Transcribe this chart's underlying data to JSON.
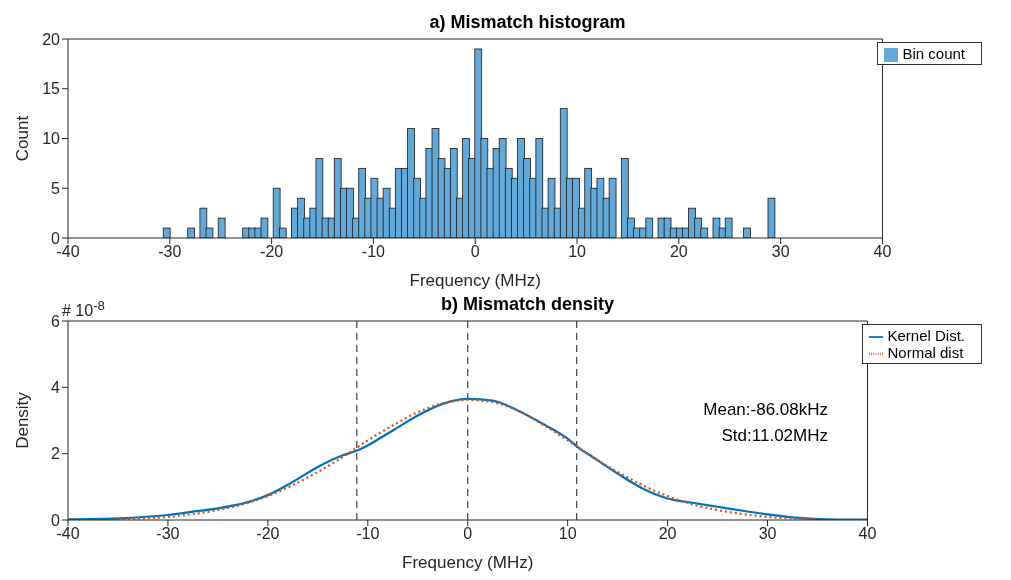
{
  "chart_data": [
    {
      "type": "histogram",
      "title": "a) Mismatch histogram",
      "xlabel": "Frequency (MHz)",
      "ylabel": "Count",
      "legend": "top right",
      "bins": [
        -30.6,
        -30,
        -29.4,
        -28.8,
        -28.2,
        -27.6,
        -27,
        -26.4,
        -25.8,
        -25.2,
        -24.6,
        -24,
        -23.4,
        -22.8,
        -22.2,
        -21.6,
        -21,
        -20.4,
        -19.8,
        -19.2,
        -18.6,
        -18,
        -17.4,
        -16.8,
        -16.2,
        -15.6,
        -15,
        -14.4,
        -13.8,
        -13.2,
        -12.6,
        -12,
        -11.4,
        -10.8,
        -10.2,
        -9.6,
        -9,
        -8.4,
        -7.8,
        -7.2,
        -6.6,
        -6,
        -5.4,
        -4.8,
        -4.2,
        -3.6,
        -3,
        -2.4,
        -1.8,
        -1.2,
        -0.6,
        0,
        0.6,
        1.2,
        1.8,
        2.4,
        3,
        3.6,
        4.2,
        4.8,
        5.4,
        6,
        6.6,
        7.2,
        7.8,
        8.4,
        9,
        9.6,
        10.2,
        10.8,
        11.4,
        12,
        12.6,
        13.2,
        13.8,
        14.4,
        15,
        15.6,
        16.2,
        16.8,
        17.4,
        18,
        18.6,
        19.2,
        19.8,
        20.4,
        21,
        21.6,
        22.2,
        22.8,
        23.4,
        24,
        24.6,
        25.2,
        25.8,
        26.4,
        27,
        27.6,
        28.2,
        28.8,
        29.4
      ],
      "series": [
        {
          "name": "Bin count",
          "color": "#62a8d8",
          "values": [
            1,
            0,
            0,
            0,
            1,
            0,
            3,
            1,
            0,
            2,
            0,
            0,
            0,
            1,
            1,
            1,
            2,
            0,
            5,
            1,
            0,
            3,
            4,
            2,
            3,
            8,
            2,
            2,
            8,
            5,
            5,
            2,
            7,
            4,
            6,
            4,
            5,
            3,
            7,
            7,
            11,
            6,
            4,
            9,
            11,
            8,
            7,
            9,
            4,
            10,
            8,
            19,
            10,
            7,
            9,
            10,
            7,
            6,
            10,
            8,
            6,
            10,
            3,
            6,
            3,
            13,
            6,
            6,
            3,
            7,
            5,
            6,
            4,
            6,
            0,
            8,
            2,
            1,
            1,
            2,
            0,
            2,
            2,
            1,
            1,
            1,
            3,
            2,
            1,
            0,
            2,
            1,
            2,
            0,
            0,
            1,
            0,
            0,
            0,
            4
          ]
        }
      ],
      "xlim": [
        -40,
        40
      ],
      "xticks": [
        -40,
        -30,
        -20,
        -10,
        0,
        10,
        20,
        30,
        40
      ],
      "ylim": [
        0,
        20
      ],
      "yticks": [
        0,
        5,
        10,
        15,
        20
      ]
    },
    {
      "type": "line",
      "title": "b) Mismatch density",
      "xlabel": "Frequency (MHz)",
      "ylabel": "Density",
      "legend": "top right",
      "x": [
        -40,
        -35,
        -30,
        -27.5,
        -25,
        -22.5,
        -20,
        -17.5,
        -15,
        -12.5,
        -11,
        -10,
        -7.5,
        -5,
        -2.5,
        0,
        2.5,
        5,
        7.5,
        10,
        11,
        12.5,
        15,
        17.5,
        20,
        22.5,
        25,
        27.5,
        30,
        32.5,
        35,
        40
      ],
      "series": [
        {
          "name": "Kernel Dist.",
          "color": "#0072bd",
          "line_style": "solid",
          "values": [
            0.02,
            0.05,
            0.15,
            0.25,
            0.35,
            0.5,
            0.75,
            1.15,
            1.6,
            1.95,
            2.1,
            2.25,
            2.7,
            3.15,
            3.5,
            3.65,
            3.6,
            3.3,
            2.9,
            2.45,
            2.2,
            1.9,
            1.4,
            0.95,
            0.65,
            0.52,
            0.4,
            0.28,
            0.17,
            0.08,
            0.03,
            0.01
          ]
        },
        {
          "name": "Normal dist",
          "color": "#d95319",
          "line_style": "dotted",
          "values": [
            null,
            0.03,
            0.09,
            0.18,
            0.3,
            0.47,
            0.72,
            1.05,
            1.45,
            1.9,
            2.2,
            2.4,
            2.85,
            3.25,
            3.52,
            3.62,
            3.55,
            3.3,
            2.88,
            2.4,
            2.2,
            1.9,
            1.45,
            1.05,
            0.72,
            0.47,
            0.3,
            0.18,
            0.09,
            0.05,
            0.03,
            null
          ]
        }
      ],
      "ref_lines": [
        {
          "axis": "x",
          "value": -11.1,
          "color": "#404040",
          "line_style": "dashed"
        },
        {
          "axis": "x",
          "value": 0,
          "color": "#404040",
          "line_style": "dashed"
        },
        {
          "axis": "x",
          "value": 10.9,
          "color": "#404040",
          "line_style": "dashed"
        }
      ],
      "annotations": [
        "# 10$^{-8}$",
        "Mean:-86.08kHz",
        "Std:11.02MHz"
      ],
      "xlim": [
        -40,
        40
      ],
      "xticks": [
        -40,
        -30,
        -20,
        -10,
        0,
        10,
        20,
        30,
        40
      ],
      "ylim": [
        0,
        6
      ],
      "yticks": [
        0,
        2,
        4,
        6
      ]
    }
  ]
}
